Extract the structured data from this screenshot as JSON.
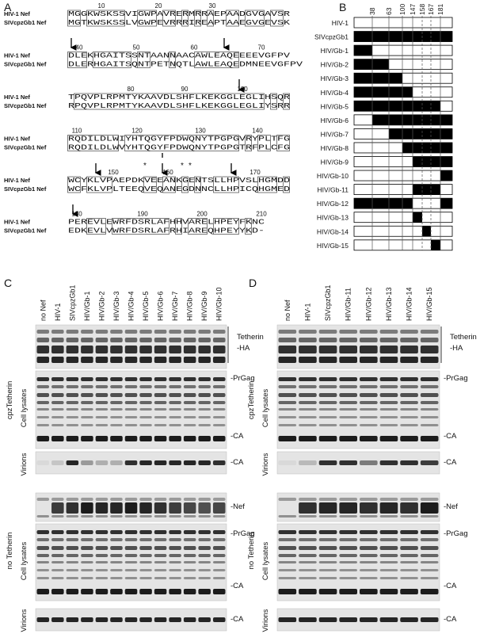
{
  "panel_a": {
    "label": "A",
    "stars": [
      "*",
      "*",
      "*"
    ],
    "blocks": [
      {
        "ruler": [
          "10",
          "20",
          "30"
        ],
        "rows": [
          {
            "name": "HIV-1 Nef",
            "sequence": "MGGKWSKSSVIGWPAVRERMRRAEPAADGVGAVSR"
          },
          {
            "name": "SIVcpzGb1 Nef",
            "sequence": "MGTKWSKSSLVGWPEVRRRIREAPTAAEGVGEVSK"
          }
        ]
      },
      {
        "ruler": [
          "40",
          "50",
          "60",
          "70"
        ],
        "rows": [
          {
            "name": "HIV-1 Nef",
            "sequence": "DLEKHGAITSSNTAANNAACAWLEAQEEEEVGFPV"
          },
          {
            "name": "SIVcpzGb1 Nef",
            "sequence": "DLERHGAITSQNTPETNQTLAWLEAQEDMNEEVGFPV"
          }
        ]
      },
      {
        "ruler": [
          "80",
          "90",
          "100"
        ],
        "rows": [
          {
            "name": "HIV-1 Nef",
            "sequence": "TPQVPLRPMTYKAAVDLSHFLKEKGGLEGLIHSQR"
          },
          {
            "name": "SIVcpzGb1 Nef",
            "sequence": "RPQVPLRPMTYKAAVDLSHFLKEKGGLEGLIYSRR"
          }
        ]
      },
      {
        "ruler": [
          "110",
          "120",
          "130",
          "140"
        ],
        "rows": [
          {
            "name": "HIV-1 Nef",
            "sequence": "RQDILDLWIYHTQGYFPDWQNYTPGPGVRYPLTFG"
          },
          {
            "name": "SIVcpzGb1 Nef",
            "sequence": "RQDILDLWVYHTQGYFPDWQNYTPGPGTRFPLCFG"
          }
        ]
      },
      {
        "ruler": [
          "150",
          "160",
          "170"
        ],
        "rows": [
          {
            "name": "HIV-1 Nef",
            "sequence": "WCYKLVPAEPDKVEEANKGENTSLLHPVSLHGMDD"
          },
          {
            "name": "SIVcpzGb1 Nef",
            "sequence": "WCFKLVPLTEEQVEQANEGDNNCLLHPICQHGMED"
          }
        ]
      },
      {
        "ruler": [
          "180",
          "190",
          "200",
          "210"
        ],
        "rows": [
          {
            "name": "HIV-1 Nef",
            "sequence": "PEREVLEWRFDSRLAFHHVARELHPEYFKNC"
          },
          {
            "name": "SIVcpzGb1 Nef",
            "sequence": "EDKEVLVWRFDSRLAFRHIAREQHPEYYKD-"
          }
        ]
      }
    ]
  },
  "panel_b": {
    "label": "B",
    "positions": [
      "38",
      "63",
      "100",
      "147",
      "158",
      "167",
      "181"
    ],
    "constructs": [
      "HIV-1",
      "SIVcpzGb1",
      "HIV/Gb-1",
      "HIV/Gb-2",
      "HIV/Gb-3",
      "HIV/Gb-4",
      "HIV/Gb-5",
      "HIV/Gb-6",
      "HIV/Gb-7",
      "HIV/Gb-8",
      "HIV/Gb-9",
      "HIV/Gb-10",
      "HIV/Gb-11",
      "HIV/Gb-12",
      "HIV/Gb-13",
      "HIV/Gb-14",
      "HIV/Gb-15"
    ]
  },
  "blot_labels": {
    "tetherin": "Tetherin",
    "ha": "-HA",
    "prgag": "-PrGag",
    "ca": "-CA",
    "nef": "-Nef",
    "cell_lysates": "Cell lysates",
    "virions": "Virions",
    "cpz_tetherin": "cpzTetherin",
    "no_tetherin": "no Tetherin"
  },
  "panel_c": {
    "label": "C",
    "lanes": [
      "no Nef",
      "HIV-1",
      "SIVcpzGb1",
      "HIV/Gb-1",
      "HIV/Gb-2",
      "HIV/Gb-3",
      "HIV/Gb-4",
      "HIV/Gb-5",
      "HIV/Gb-6",
      "HIV/Gb-7",
      "HIV/Gb-8",
      "HIV/Gb-9",
      "HIV/Gb-10"
    ]
  },
  "panel_d": {
    "label": "D",
    "lanes": [
      "no Nef",
      "HIV-1",
      "SIVcpzGb1",
      "HIV/Gb-11",
      "HIV/Gb-12",
      "HIV/Gb-13",
      "HIV/Gb-14",
      "HIV/Gb-15"
    ]
  }
}
